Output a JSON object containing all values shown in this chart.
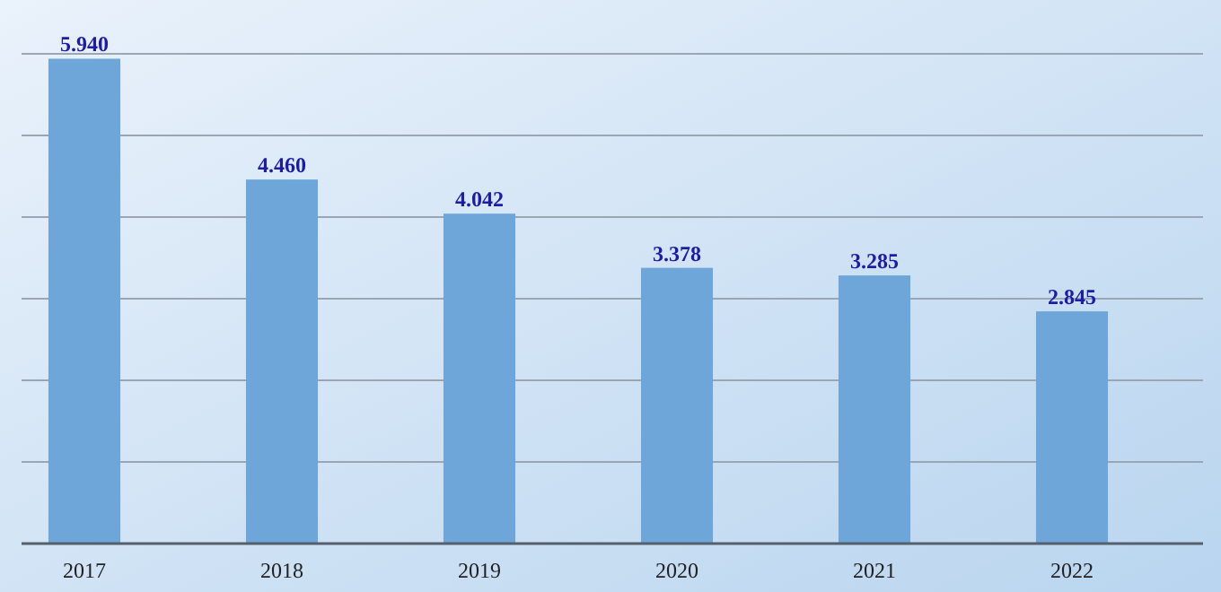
{
  "chart_data": {
    "type": "bar",
    "categories": [
      "2017",
      "2018",
      "2019",
      "2020",
      "2021",
      "2022"
    ],
    "values": [
      5.94,
      4.46,
      4.042,
      3.378,
      3.285,
      2.845
    ],
    "value_labels": [
      "5.940",
      "4.460",
      "4.042",
      "3.378",
      "3.285",
      "2.845"
    ],
    "color": "#6fa6da",
    "ylim": [
      0,
      6
    ],
    "yticks": [
      {
        "value": 0,
        "label": null
      },
      {
        "value": 1,
        "label": null
      },
      {
        "value": 2,
        "label": null
      },
      {
        "value": 3,
        "label": null
      },
      {
        "value": 4,
        "label": null
      },
      {
        "value": 5,
        "label": null
      },
      {
        "value": 6,
        "label": null
      }
    ],
    "grid": "y",
    "tick_labels": "x"
  }
}
